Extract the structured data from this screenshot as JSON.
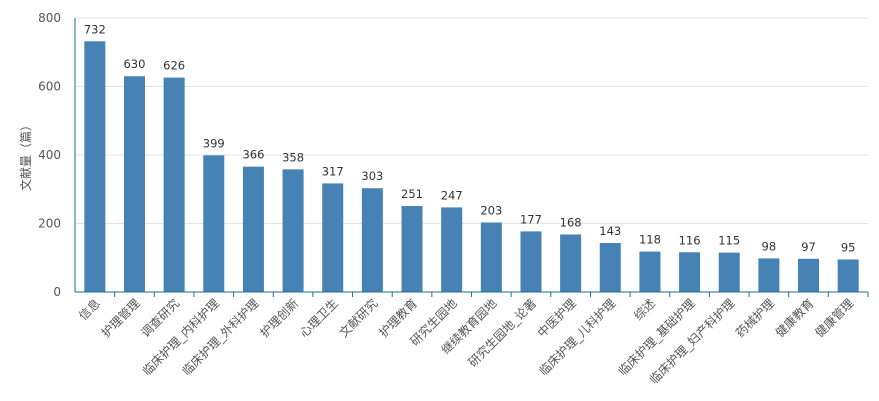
{
  "chart_data": {
    "type": "bar",
    "title": "",
    "xlabel": "",
    "ylabel": "文献量（篇）",
    "ylim": [
      0,
      800
    ],
    "yticks": [
      0,
      200,
      400,
      600,
      800
    ],
    "grid": true,
    "legend": "none",
    "bar_color": "#4682b4",
    "categories": [
      "信息",
      "护理管理",
      "调查研究",
      "临床护理_内科护理",
      "临床护理_外科护理",
      "护理创新",
      "心理卫生",
      "文献研究",
      "护理教育",
      "研究生园地",
      "继续教育园地",
      "研究生园地_论著",
      "中医护理",
      "临床护理_儿科护理",
      "综述",
      "临床护理_基础护理",
      "临床护理_妇产科护理",
      "药械护理",
      "健康教育",
      "健康管理"
    ],
    "values": [
      732,
      630,
      626,
      399,
      366,
      358,
      317,
      303,
      251,
      247,
      203,
      177,
      168,
      143,
      118,
      116,
      115,
      98,
      97,
      95
    ]
  }
}
